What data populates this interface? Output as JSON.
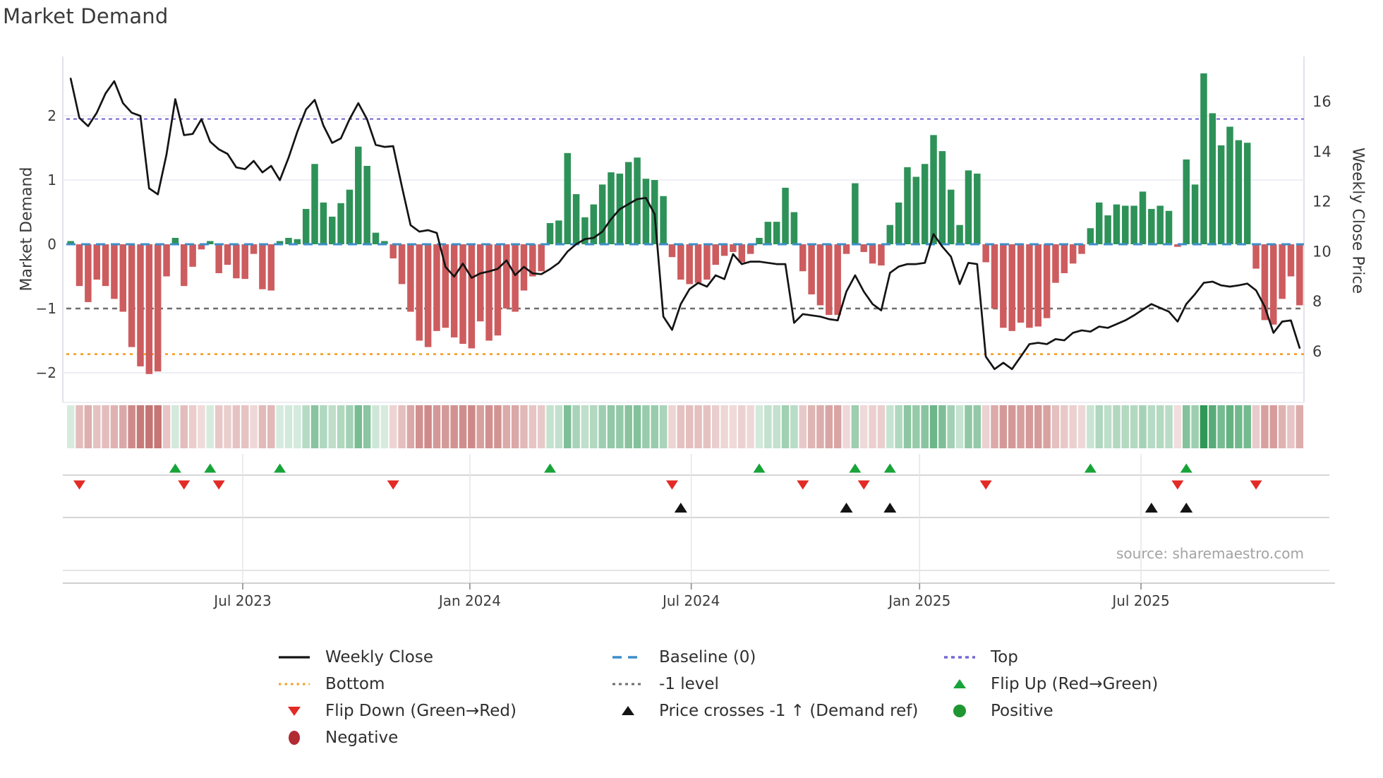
{
  "main": {
    "title": "Market Demand",
    "y_left_title": "Market Demand",
    "y_right_title": "Weekly Close Price",
    "source": "source: sharemaestro.com"
  },
  "chart_data": {
    "type": "bar+line",
    "title": "Market Demand",
    "ylabel_left": "Market Demand",
    "ylabel_right": "Weekly Close Price",
    "n_weeks": 142,
    "x_range_note": "weekly bars, Feb 2023 - Nov 2025",
    "month_ticks": [
      {
        "label": "Jul 2023",
        "index": 19.74
      },
      {
        "label": "Jan 2024",
        "index": 45.8
      },
      {
        "label": "Jul 2024",
        "index": 71.2
      },
      {
        "label": "Jan 2025",
        "index": 97.4
      },
      {
        "label": "Jul 2025",
        "index": 122.8
      }
    ],
    "y_left_ticks": [
      {
        "v": 2,
        "label": "2"
      },
      {
        "v": 1,
        "label": "1"
      },
      {
        "v": 0,
        "label": "0"
      },
      {
        "v": -1,
        "label": "−1"
      },
      {
        "v": -2,
        "label": "−2"
      }
    ],
    "y_right_ticks": [
      {
        "v": 16,
        "label": "16"
      },
      {
        "v": 14,
        "label": "14"
      },
      {
        "v": 12,
        "label": "12"
      },
      {
        "v": 10,
        "label": "10"
      },
      {
        "v": 8,
        "label": "8"
      },
      {
        "v": 6,
        "label": "6"
      }
    ],
    "gridlines_left_values": [
      2,
      1,
      -2
    ],
    "levels": {
      "top": 1.95,
      "baseline": 0,
      "minus1": -1,
      "bottom": -1.71
    },
    "demand": [
      0.05,
      -0.65,
      -0.9,
      -0.55,
      -0.65,
      -0.85,
      -1.05,
      -1.6,
      -1.9,
      -2.02,
      -1.98,
      -0.5,
      0.1,
      -0.65,
      -0.35,
      -0.08,
      0.05,
      -0.45,
      -0.32,
      -0.53,
      -0.54,
      -0.15,
      -0.7,
      -0.72,
      0.05,
      0.1,
      0.08,
      0.55,
      1.25,
      0.65,
      0.43,
      0.64,
      0.85,
      1.52,
      1.22,
      0.18,
      0.05,
      -0.22,
      -0.62,
      -1.05,
      -1.5,
      -1.6,
      -1.35,
      -1.3,
      -1.45,
      -1.55,
      -1.62,
      -1.2,
      -1.5,
      -1.42,
      -1.0,
      -1.05,
      -0.72,
      -0.5,
      -0.42,
      0.33,
      0.37,
      1.42,
      0.78,
      0.42,
      0.62,
      0.93,
      1.12,
      1.1,
      1.28,
      1.35,
      1.02,
      1.0,
      0.75,
      -0.2,
      -0.55,
      -0.62,
      -0.6,
      -0.55,
      -0.32,
      -0.18,
      -0.12,
      -0.28,
      -0.15,
      0.1,
      0.35,
      0.35,
      0.88,
      0.5,
      -0.42,
      -0.78,
      -0.95,
      -1.1,
      -1.1,
      -0.15,
      0.95,
      -0.12,
      -0.3,
      -0.33,
      0.3,
      0.65,
      1.2,
      1.05,
      1.25,
      1.7,
      1.45,
      0.85,
      0.3,
      1.15,
      1.1,
      -0.28,
      -1.0,
      -1.3,
      -1.35,
      -1.22,
      -1.3,
      -1.28,
      -1.15,
      -0.6,
      -0.45,
      -0.3,
      -0.15,
      0.25,
      0.65,
      0.45,
      0.62,
      0.6,
      0.6,
      0.82,
      0.55,
      0.6,
      0.52,
      -0.04,
      1.32,
      0.93,
      2.66,
      2.04,
      1.54,
      1.83,
      1.62,
      1.58,
      -0.38,
      -1.18,
      -1.25,
      -0.85,
      -0.5,
      -0.95
    ],
    "price": [
      16.92,
      15.35,
      15.02,
      15.56,
      16.33,
      16.82,
      15.94,
      15.56,
      15.43,
      12.53,
      12.29,
      13.89,
      16.1,
      14.66,
      14.71,
      15.3,
      14.4,
      14.09,
      13.91,
      13.37,
      13.3,
      13.63,
      13.17,
      13.43,
      12.86,
      13.76,
      14.79,
      15.69,
      16.07,
      15.04,
      14.35,
      14.53,
      15.3,
      15.94,
      15.3,
      14.27,
      14.19,
      14.22,
      12.6,
      11.06,
      10.8,
      10.86,
      10.75,
      9.39,
      9.0,
      9.52,
      8.95,
      9.13,
      9.21,
      9.31,
      9.65,
      9.06,
      9.39,
      9.13,
      9.1,
      9.3,
      9.55,
      10.0,
      10.3,
      10.5,
      10.55,
      10.8,
      11.3,
      11.7,
      11.9,
      12.1,
      12.15,
      11.5,
      7.4,
      6.87,
      7.9,
      8.5,
      8.75,
      8.6,
      9.05,
      8.9,
      9.9,
      9.5,
      9.6,
      9.6,
      9.55,
      9.5,
      9.5,
      7.15,
      7.5,
      7.45,
      7.4,
      7.3,
      7.25,
      8.4,
      9.05,
      8.4,
      7.9,
      7.65,
      9.15,
      9.4,
      9.5,
      9.5,
      9.55,
      10.7,
      10.2,
      9.8,
      8.7,
      9.55,
      9.5,
      5.8,
      5.3,
      5.55,
      5.3,
      5.8,
      6.3,
      6.35,
      6.3,
      6.5,
      6.45,
      6.75,
      6.85,
      6.8,
      7.0,
      6.95,
      7.1,
      7.25,
      7.45,
      7.68,
      7.9,
      7.75,
      7.6,
      7.2,
      7.9,
      8.3,
      8.75,
      8.8,
      8.65,
      8.6,
      8.65,
      8.72,
      8.45,
      7.8,
      6.75,
      7.2,
      7.25,
      6.15
    ],
    "markers": {
      "flip_up_weeks": [
        12,
        16,
        24,
        55,
        79,
        90,
        94,
        117,
        128
      ],
      "flip_down_weeks": [
        1,
        13,
        17,
        37,
        69,
        84,
        91,
        105,
        127,
        136
      ],
      "price_cross_weeks": [
        70,
        89,
        94,
        124,
        128
      ]
    },
    "colors": {
      "bar_positive": "#2E9258",
      "bar_negative": "#CD5C5F",
      "line": "#141414",
      "top_level": "#7468D4",
      "baseline": "#3D8EC9",
      "minus1_level": "#6E6E6E",
      "bottom_level": "#F5A12B",
      "flip_up": "#18A339",
      "flip_down": "#E32A25",
      "price_cross": "#141414",
      "positive_dot": "#1E9632",
      "negative_dot": "#B12B33",
      "grid": "#E9E9F2",
      "spine": "#D9D9E3"
    }
  },
  "legend": {
    "items": [
      {
        "label": "Weekly Close",
        "symbol": "line-black",
        "col": 0,
        "row": 0
      },
      {
        "label": "Bottom",
        "symbol": "dots-orange",
        "col": 0,
        "row": 1
      },
      {
        "label": "Flip Down (Green→Red)",
        "symbol": "tri-down-red",
        "col": 0,
        "row": 2
      },
      {
        "label": "Negative",
        "symbol": "dot-darkred",
        "col": 0,
        "row": 3
      },
      {
        "label": "Baseline (0)",
        "symbol": "dash-blue",
        "col": 1,
        "row": 0
      },
      {
        "label": "-1 level",
        "symbol": "dots-gray",
        "col": 1,
        "row": 1
      },
      {
        "label": "Price crosses -1 ↑ (Demand ref)",
        "symbol": "tri-up-black",
        "col": 1,
        "row": 2
      },
      {
        "label": "Top",
        "symbol": "dots-purple",
        "col": 2,
        "row": 0
      },
      {
        "label": "Flip Up (Red→Green)",
        "symbol": "tri-up-green",
        "col": 2,
        "row": 1
      },
      {
        "label": "Positive",
        "symbol": "dot-green",
        "col": 2,
        "row": 2
      }
    ]
  }
}
